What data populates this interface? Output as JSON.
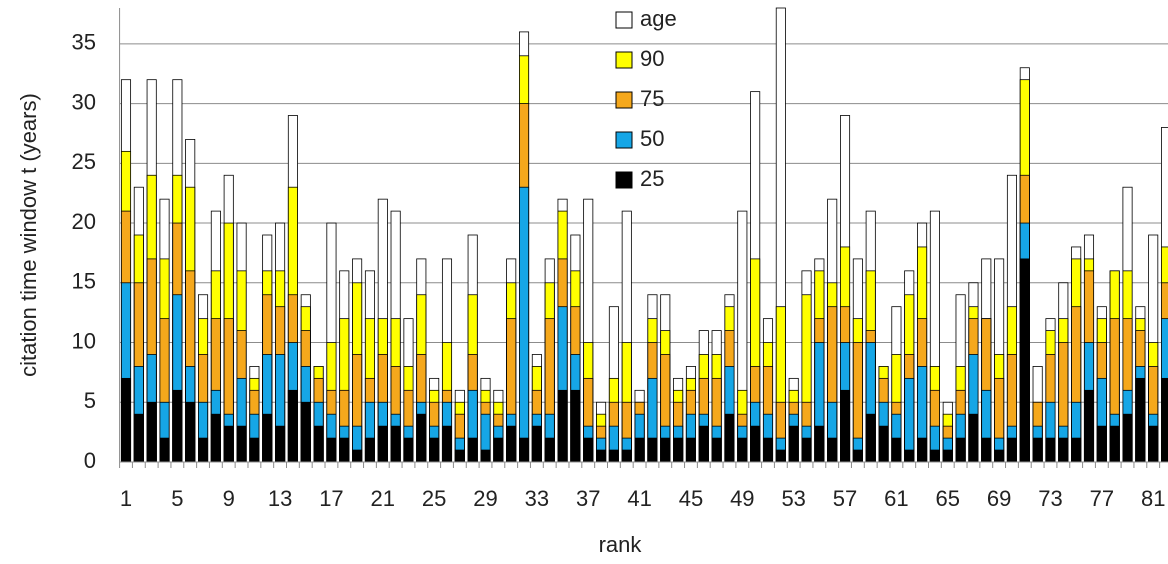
{
  "chart_data": {
    "type": "bar",
    "overlap": true,
    "y_label": "citation time window t (years)",
    "x_label": "rank",
    "categories": [
      1,
      null,
      null,
      null,
      5,
      null,
      null,
      null,
      9,
      null,
      null,
      null,
      13,
      null,
      null,
      null,
      17,
      null,
      null,
      null,
      21,
      null,
      null,
      null,
      25,
      null,
      null,
      null,
      29,
      null,
      null,
      null,
      33,
      null,
      null,
      null,
      37,
      null,
      null,
      null,
      41,
      null,
      null,
      null,
      45,
      null,
      null,
      null,
      49,
      null,
      null,
      null,
      53,
      null,
      null,
      null,
      57,
      null,
      null,
      null,
      61,
      null,
      null,
      null,
      65,
      null,
      null,
      null,
      69,
      null,
      null,
      null,
      73,
      null,
      null,
      null,
      77,
      null,
      null,
      null,
      81,
      null
    ],
    "ylim": [
      0,
      38
    ],
    "yticks": [
      0,
      5,
      10,
      15,
      20,
      25,
      30,
      35
    ],
    "grid": true,
    "series": [
      {
        "name": "age",
        "color": "#ffffff",
        "values": [
          32,
          23,
          32,
          22,
          32,
          27,
          14,
          21,
          24,
          20,
          8,
          19,
          20,
          29,
          14,
          8,
          20,
          16,
          17,
          16,
          22,
          21,
          12,
          17,
          7,
          17,
          6,
          19,
          7,
          6,
          17,
          36,
          9,
          17,
          22,
          19,
          22,
          5,
          13,
          21,
          6,
          14,
          14,
          7,
          8,
          11,
          11,
          14,
          21,
          31,
          12,
          38,
          7,
          16,
          17,
          22,
          29,
          17,
          21,
          8,
          13,
          16,
          20,
          21,
          5,
          14,
          15,
          17,
          17,
          24,
          33,
          8,
          12,
          15,
          18,
          19,
          13,
          16,
          23,
          13,
          19,
          28
        ]
      },
      {
        "name": "90",
        "color": "#ffff00",
        "values": [
          26,
          19,
          24,
          17,
          24,
          23,
          12,
          16,
          20,
          16,
          7,
          16,
          16,
          23,
          13,
          8,
          10,
          12,
          15,
          12,
          12,
          12,
          8,
          14,
          6,
          10,
          5,
          14,
          6,
          5,
          15,
          34,
          8,
          15,
          21,
          16,
          10,
          4,
          7,
          10,
          5,
          12,
          11,
          6,
          7,
          9,
          9,
          13,
          6,
          17,
          10,
          13,
          6,
          14,
          16,
          15,
          18,
          12,
          16,
          8,
          9,
          14,
          18,
          8,
          4,
          8,
          13,
          12,
          9,
          13,
          32,
          5,
          11,
          12,
          17,
          17,
          12,
          16,
          16,
          12,
          10,
          18
        ]
      },
      {
        "name": "75",
        "color": "#f5a81c",
        "values": [
          21,
          15,
          17,
          12,
          20,
          16,
          9,
          12,
          12,
          11,
          6,
          14,
          13,
          14,
          11,
          7,
          6,
          6,
          9,
          7,
          9,
          8,
          6,
          9,
          5,
          6,
          4,
          9,
          5,
          4,
          12,
          30,
          6,
          12,
          17,
          13,
          7,
          3,
          5,
          5,
          5,
          10,
          9,
          5,
          6,
          7,
          7,
          11,
          4,
          8,
          8,
          5,
          5,
          5,
          12,
          13,
          13,
          10,
          11,
          7,
          5,
          9,
          12,
          6,
          3,
          6,
          12,
          12,
          7,
          9,
          24,
          5,
          9,
          10,
          13,
          16,
          10,
          12,
          12,
          11,
          8,
          15
        ]
      },
      {
        "name": "50",
        "color": "#16a6e6",
        "values": [
          15,
          8,
          9,
          5,
          14,
          8,
          5,
          6,
          4,
          7,
          4,
          9,
          9,
          10,
          8,
          5,
          4,
          3,
          3,
          5,
          5,
          4,
          3,
          5,
          3,
          5,
          2,
          6,
          4,
          3,
          4,
          23,
          4,
          4,
          13,
          9,
          3,
          2,
          3,
          2,
          4,
          7,
          3,
          3,
          4,
          4,
          3,
          8,
          3,
          5,
          4,
          2,
          4,
          3,
          10,
          5,
          10,
          2,
          10,
          5,
          4,
          7,
          8,
          3,
          2,
          4,
          9,
          6,
          2,
          3,
          20,
          3,
          5,
          3,
          5,
          10,
          7,
          4,
          6,
          8,
          4,
          12
        ]
      },
      {
        "name": "25",
        "color": "#000000",
        "values": [
          7,
          4,
          5,
          2,
          6,
          5,
          2,
          4,
          3,
          3,
          2,
          4,
          3,
          6,
          5,
          3,
          2,
          2,
          1,
          2,
          3,
          3,
          2,
          4,
          2,
          3,
          1,
          2,
          1,
          2,
          3,
          2,
          3,
          2,
          6,
          6,
          2,
          1,
          1,
          1,
          2,
          2,
          2,
          2,
          2,
          3,
          2,
          4,
          2,
          3,
          2,
          1,
          3,
          2,
          3,
          2,
          6,
          1,
          4,
          3,
          2,
          1,
          2,
          1,
          1,
          2,
          4,
          2,
          1,
          2,
          17,
          2,
          2,
          2,
          2,
          6,
          3,
          3,
          4,
          7,
          3,
          7
        ]
      }
    ]
  }
}
